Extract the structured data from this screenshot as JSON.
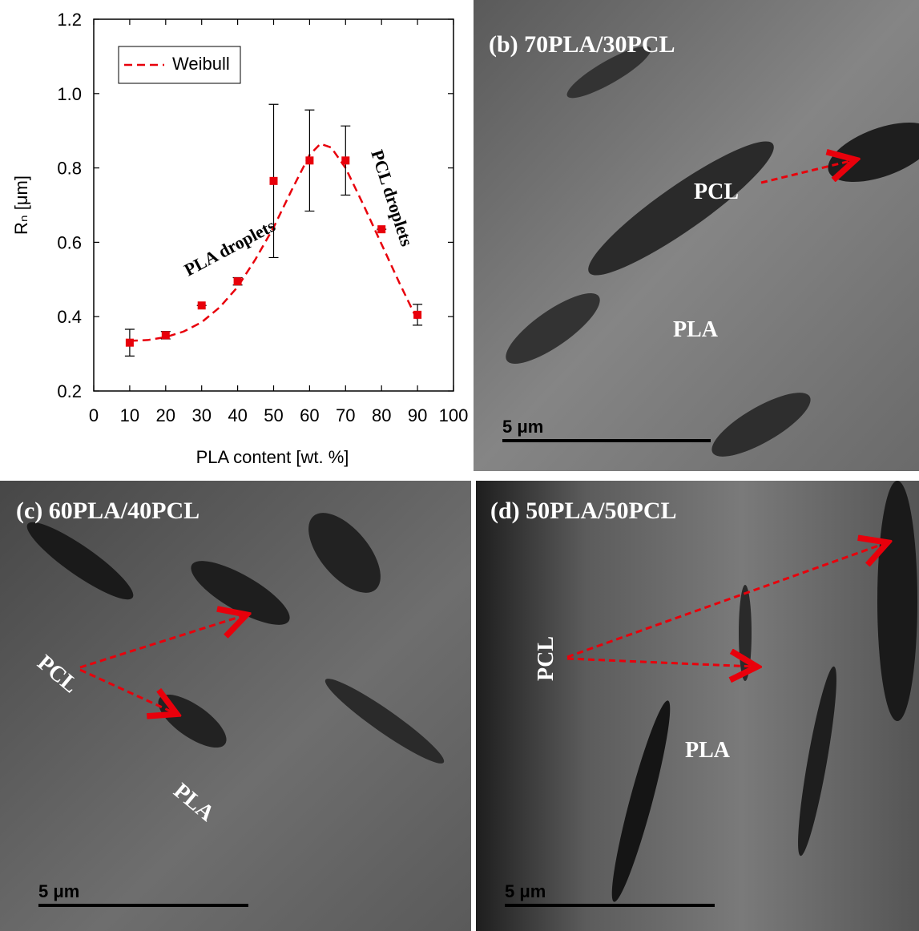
{
  "chart_data": {
    "type": "scatter",
    "xlabel": "PLA content [wt. %]",
    "ylabel": "Rₙ [μm]",
    "x": [
      10,
      20,
      30,
      40,
      50,
      60,
      70,
      80,
      90
    ],
    "values": [
      0.33,
      0.35,
      0.43,
      0.495,
      0.765,
      0.82,
      0.82,
      0.635,
      0.405
    ],
    "errors": [
      0.036,
      0.01,
      0,
      0.01,
      0.206,
      0.136,
      0.093,
      0,
      0.028
    ],
    "color": "#e8000b",
    "fit": {
      "name": "Weibull",
      "color": "#e8000b",
      "dash": true,
      "x": [
        10,
        15,
        20,
        25,
        30,
        35,
        40,
        45,
        50,
        55,
        60,
        63,
        66,
        70,
        75,
        80,
        85,
        90
      ],
      "values": [
        0.335,
        0.337,
        0.345,
        0.36,
        0.385,
        0.425,
        0.48,
        0.555,
        0.64,
        0.74,
        0.835,
        0.865,
        0.855,
        0.8,
        0.7,
        0.595,
        0.49,
        0.39
      ]
    },
    "xlim": [
      0,
      100
    ],
    "xticks": [
      0,
      10,
      20,
      30,
      40,
      50,
      60,
      70,
      80,
      90,
      100
    ],
    "ylim": [
      0.2,
      1.2
    ],
    "yticks": [
      0.2,
      0.4,
      0.6,
      0.8,
      {
        "value": 1,
        "label": "1.0"
      },
      1.2
    ],
    "legend": "upper left",
    "annotations": [
      "PLA droplets",
      "PCL droplets"
    ]
  },
  "micrographs": [
    {
      "label": "(b) 70PLA/30PCL",
      "annotations": [
        "PCL",
        "PLA"
      ],
      "scale_bar": "5 μm"
    },
    {
      "label": "(c) 60PLA/40PCL",
      "annotations": [
        "PCL",
        "PLA"
      ],
      "scale_bar": "5 μm"
    },
    {
      "label": "(d) 50PLA/50PCL",
      "annotations": [
        "PCL",
        "PLA"
      ],
      "scale_bar": "5 μm"
    }
  ]
}
